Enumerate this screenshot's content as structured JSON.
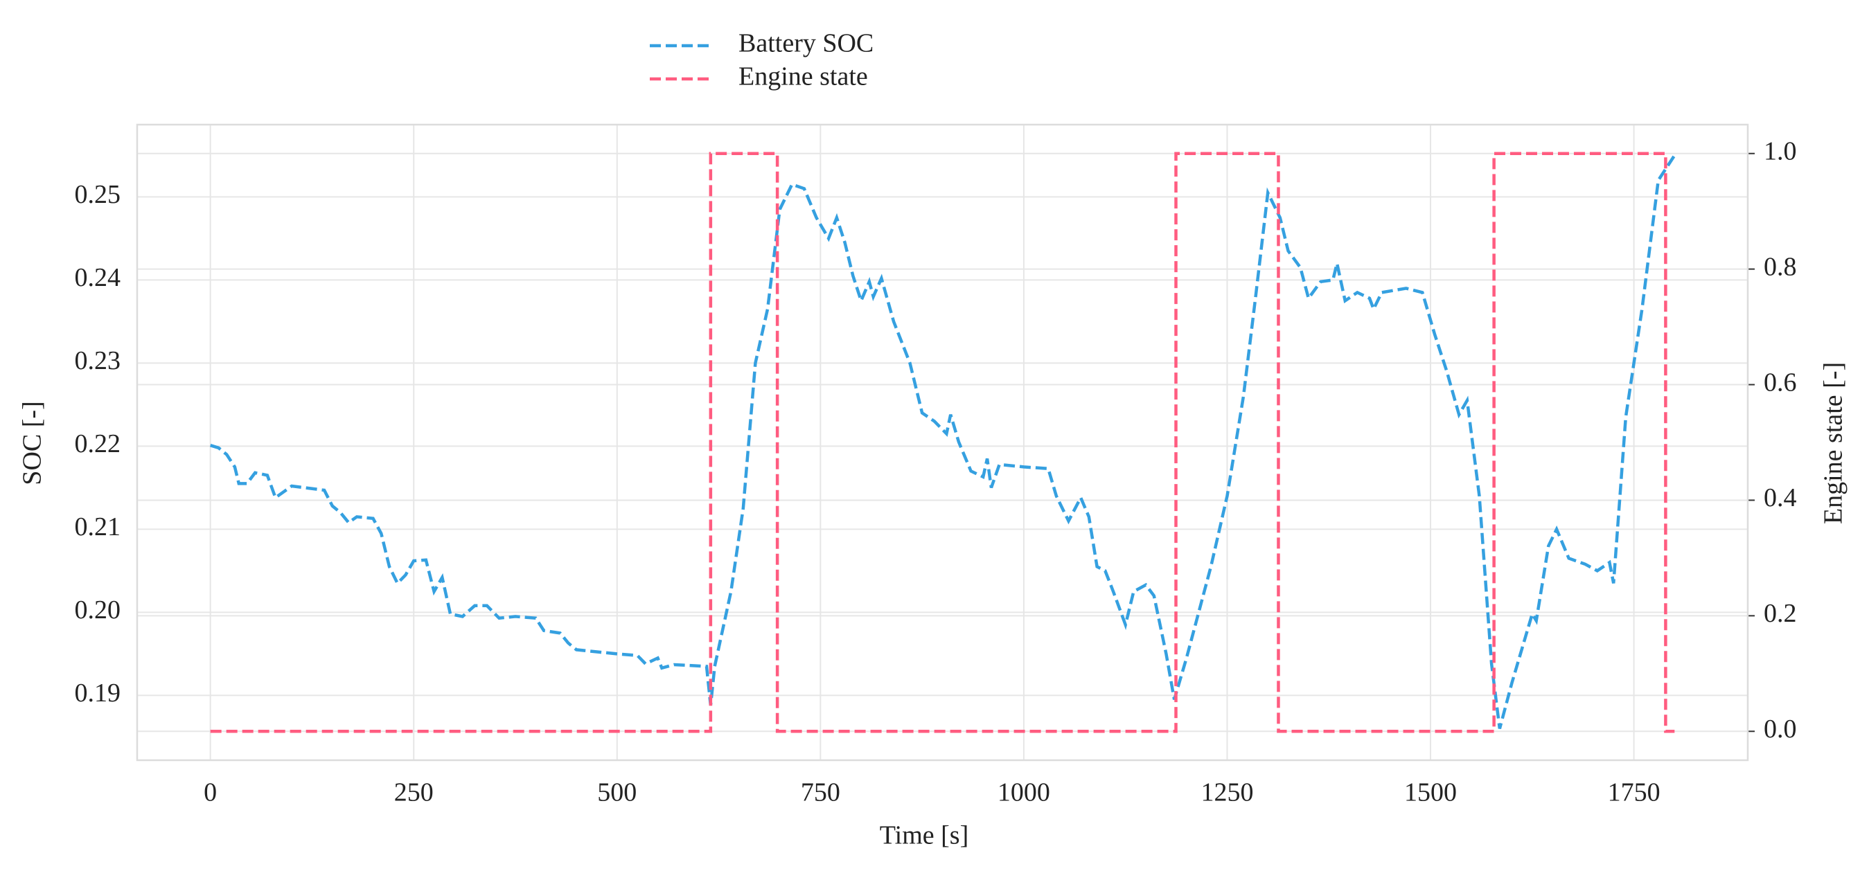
{
  "chart_data": {
    "type": "line",
    "xlabel": "Time [s]",
    "ylabel": "SOC [-]",
    "y2label": "Engine state [-]",
    "xlim": [
      -90,
      1890
    ],
    "xticks": [
      0,
      250,
      500,
      750,
      1000,
      1250,
      1500,
      1750
    ],
    "ylim": [
      0.1822,
      0.2587
    ],
    "yticks": [
      0.19,
      {
        "value": 0.2,
        "label": "0.20"
      },
      0.21,
      0.22,
      0.23,
      0.24,
      0.25
    ],
    "y2lim": [
      -0.05,
      1.05
    ],
    "y2ticks": [
      {
        "value": 0,
        "label": "0.0"
      },
      0.2,
      0.4,
      0.6,
      0.8,
      {
        "value": 1,
        "label": "1.0"
      }
    ],
    "grid": true,
    "legend": "top",
    "series": [
      {
        "name": "Battery SOC",
        "color": "#35a0e0",
        "x": [
          0,
          10,
          20,
          30,
          35,
          45,
          55,
          70,
          80,
          90,
          100,
          140,
          150,
          160,
          170,
          180,
          200,
          210,
          220,
          230,
          240,
          250,
          265,
          275,
          285,
          295,
          310,
          325,
          340,
          355,
          375,
          400,
          410,
          430,
          440,
          450,
          500,
          525,
          535,
          550,
          555,
          570,
          610,
          615,
          620,
          640,
          655,
          670,
          685,
          700,
          715,
          730,
          745,
          760,
          770,
          780,
          790,
          800,
          810,
          815,
          825,
          840,
          860,
          875,
          890,
          905,
          910,
          920,
          935,
          950,
          955,
          960,
          970,
          1000,
          1030,
          1040,
          1055,
          1070,
          1080,
          1090,
          1100,
          1110,
          1125,
          1135,
          1150,
          1160,
          1175,
          1185,
          1200,
          1230,
          1250,
          1270,
          1285,
          1300,
          1315,
          1325,
          1340,
          1350,
          1365,
          1380,
          1385,
          1395,
          1410,
          1425,
          1430,
          1440,
          1470,
          1490,
          1505,
          1520,
          1535,
          1545,
          1560,
          1575,
          1585,
          1600,
          1625,
          1630,
          1645,
          1655,
          1670,
          1690,
          1705,
          1720,
          1725,
          1740,
          1760,
          1780,
          1800
        ],
        "values": [
          0.2201,
          0.2198,
          0.219,
          0.2175,
          0.2155,
          0.2155,
          0.2168,
          0.2165,
          0.2138,
          0.2145,
          0.2152,
          0.2147,
          0.2128,
          0.212,
          0.2108,
          0.2115,
          0.2113,
          0.2095,
          0.2055,
          0.2035,
          0.2045,
          0.2062,
          0.2063,
          0.2025,
          0.2042,
          0.1998,
          0.1995,
          0.2008,
          0.2008,
          0.1993,
          0.1995,
          0.1993,
          0.1978,
          0.1975,
          0.1963,
          0.1955,
          0.195,
          0.1948,
          0.1938,
          0.1945,
          0.1933,
          0.1937,
          0.1935,
          0.1888,
          0.1935,
          0.2025,
          0.2125,
          0.23,
          0.2365,
          0.2485,
          0.2515,
          0.251,
          0.2475,
          0.245,
          0.2475,
          0.2445,
          0.2405,
          0.2375,
          0.2398,
          0.238,
          0.2402,
          0.235,
          0.23,
          0.224,
          0.223,
          0.2215,
          0.2238,
          0.2205,
          0.217,
          0.2163,
          0.2185,
          0.215,
          0.2178,
          0.2175,
          0.2173,
          0.214,
          0.211,
          0.2138,
          0.2115,
          0.2055,
          0.205,
          0.2025,
          0.1985,
          0.2025,
          0.2033,
          0.202,
          0.195,
          0.1895,
          0.1945,
          0.2055,
          0.214,
          0.226,
          0.238,
          0.2505,
          0.2475,
          0.2435,
          0.2415,
          0.2378,
          0.2398,
          0.24,
          0.242,
          0.2375,
          0.2385,
          0.2378,
          0.2365,
          0.2385,
          0.239,
          0.2385,
          0.2335,
          0.229,
          0.2238,
          0.2255,
          0.214,
          0.1938,
          0.186,
          0.1915,
          0.1998,
          0.199,
          0.208,
          0.21,
          0.2065,
          0.2058,
          0.205,
          0.206,
          0.2035,
          0.2235,
          0.2365,
          0.252,
          0.255
        ]
      },
      {
        "name": "Engine state",
        "color": "#ff5c80",
        "axis": "y2",
        "x": [
          0,
          615,
          615,
          697,
          697,
          1187,
          1187,
          1313,
          1313,
          1578,
          1578,
          1789,
          1789,
          1800
        ],
        "values": [
          0,
          0,
          1,
          1,
          0,
          0,
          1,
          1,
          0,
          0,
          1,
          1,
          0,
          0
        ]
      }
    ]
  }
}
